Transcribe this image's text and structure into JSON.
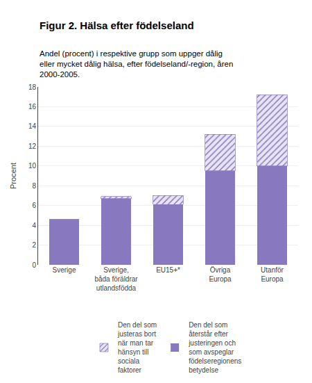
{
  "chart_data": {
    "type": "bar",
    "title": "Figur 2. Hälsa efter födelseland",
    "subtitle": "Andel (procent) i respektive grupp som uppger dålig\neller mycket dålig hälsa, efter födelseland/-region, åren\n2000-2005.",
    "ylabel": "Procent",
    "categories": [
      "Sverige",
      "Sverige,\nbåda föräldrar\nutlandsfödda",
      "EU15+*",
      "Övriga\nEuropa",
      "Utanför\nEuropa"
    ],
    "series": [
      {
        "name": "Den del som\nåterstår efter\njusteringen och\nsom avspeglar\nfödelseregionens\nbetydelse",
        "color": "#8878c0",
        "values": [
          4.6,
          6.7,
          6.1,
          9.5,
          10.0
        ]
      },
      {
        "name": "Den del som\njusteras bort\nnär man tar\nhänsyn till\nsociala\nfaktorer",
        "color": "#e8e4f4",
        "marker": "hatch",
        "values": [
          0.0,
          0.2,
          0.9,
          3.7,
          7.2
        ]
      }
    ],
    "stacked": true,
    "ylim": [
      0,
      18
    ],
    "yticks": [
      0,
      2,
      4,
      6,
      8,
      10,
      12,
      14,
      16,
      18
    ],
    "grid": true,
    "legend": "bottom"
  }
}
